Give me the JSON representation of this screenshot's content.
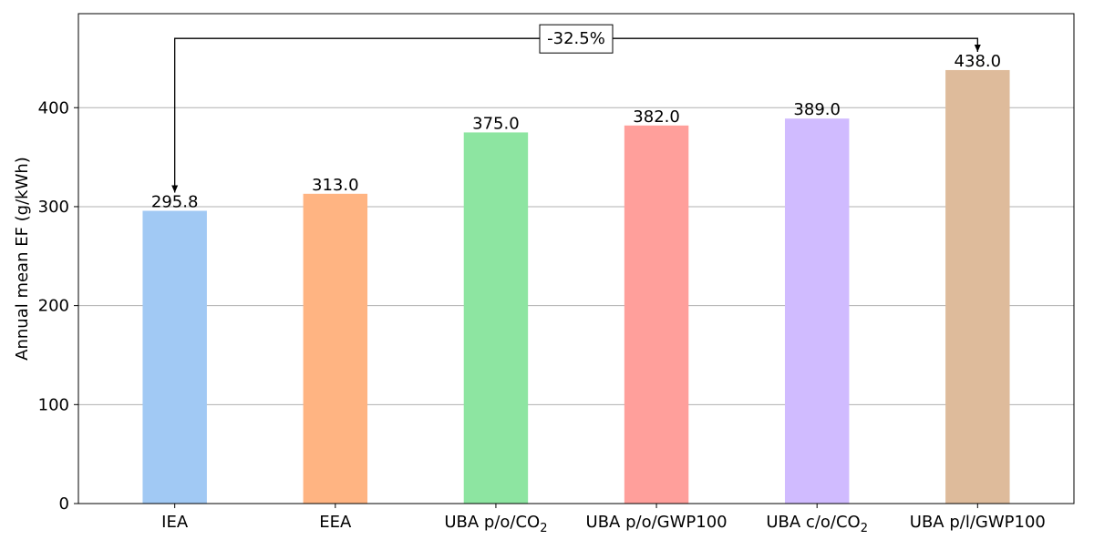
{
  "chart_data": {
    "type": "bar",
    "title": "",
    "xlabel": "",
    "ylabel": "Annual mean EF (g/kWh)",
    "ylim": [
      0,
      495
    ],
    "yticks": [
      0,
      100,
      200,
      300,
      400
    ],
    "grid": "y",
    "legend": "none",
    "categories": [
      {
        "base": "IEA",
        "sub": ""
      },
      {
        "base": "EEA",
        "sub": ""
      },
      {
        "base": "UBA p/o/CO",
        "sub": "2"
      },
      {
        "base": "UBA p/o/GWP100",
        "sub": ""
      },
      {
        "base": "UBA c/o/CO",
        "sub": "2"
      },
      {
        "base": "UBA p/l/GWP100",
        "sub": ""
      }
    ],
    "values": [
      295.8,
      313.0,
      375.0,
      382.0,
      389.0,
      438.0
    ],
    "value_labels": [
      "295.8",
      "313.0",
      "375.0",
      "382.0",
      "389.0",
      "438.0"
    ],
    "colors": [
      "#a1c9f4",
      "#ffb482",
      "#8de5a1",
      "#ff9f9b",
      "#d0bbff",
      "#debb9b"
    ],
    "annotation": {
      "text": "-32.5%",
      "from_index": 0,
      "to_index": 5,
      "bracket_y": 470
    }
  }
}
